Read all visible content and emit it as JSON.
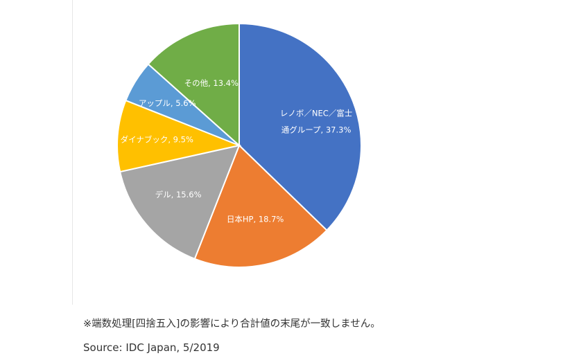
{
  "chart_data": {
    "type": "pie",
    "title": "",
    "slices": [
      {
        "label": "レノボ／NEC／富士通グループ",
        "value": 37.3,
        "color": "#4472C4",
        "text_lines": [
          "レノボ／NEC／富士",
          "通グループ, 37.3%"
        ]
      },
      {
        "label": "日本HP",
        "value": 18.7,
        "color": "#ED7D31",
        "text_lines": [
          "日本HP, 18.7%"
        ]
      },
      {
        "label": "デル",
        "value": 15.6,
        "color": "#A5A5A5",
        "text_lines": [
          "デル, 15.6%"
        ]
      },
      {
        "label": "ダイナブック",
        "value": 9.5,
        "color": "#FFC000",
        "text_lines": [
          "ダイナブック, 9.5%"
        ]
      },
      {
        "label": "アップル",
        "value": 5.6,
        "color": "#5B9BD5",
        "text_lines": [
          "アップル, 5.6%"
        ]
      },
      {
        "label": "その他",
        "value": 13.4,
        "color": "#70AD47",
        "text_lines": [
          "その他, 13.4%"
        ]
      }
    ],
    "legend": "none"
  },
  "footnote": "※端数処理[四捨五入]の影響により合計値の末尾が一致しません。",
  "source": "Source: IDC Japan, 5/2019"
}
